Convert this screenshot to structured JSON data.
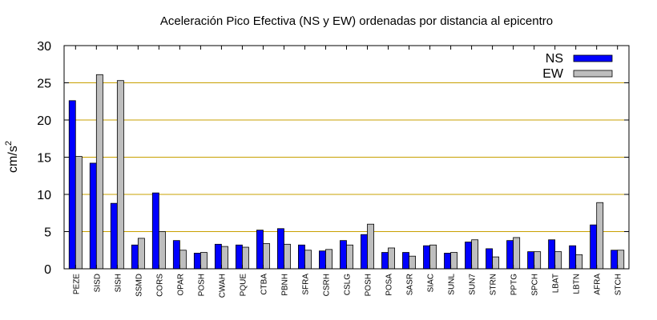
{
  "chart_data": {
    "type": "bar",
    "title": "Aceleración Pico Efectiva (NS y EW) ordenadas por distancia al epicentro",
    "xlabel": "",
    "ylabel": "cm/s",
    "ylabel_sup": "2",
    "ylim": [
      0,
      30
    ],
    "yticks": [
      0,
      5,
      10,
      15,
      20,
      25,
      30
    ],
    "grid": true,
    "legend_position": "top-right",
    "categories": [
      "PEZE",
      "SISD",
      "SISH",
      "SSMD",
      "CORS",
      "OPAR",
      "POSH",
      "CWAH",
      "PQUE",
      "CTBA",
      "PBNH",
      "SFRA",
      "CSRH",
      "CSLG",
      "POSH",
      "POSA",
      "SASR",
      "SIAC",
      "SUNL",
      "SUN7",
      "STRN",
      "PPTG",
      "SPCH",
      "LBAT",
      "LBTN",
      "AFRA",
      "STCH"
    ],
    "series": [
      {
        "name": "NS",
        "color": "#0000ff",
        "values": [
          22.6,
          14.2,
          8.8,
          3.2,
          10.2,
          3.8,
          2.1,
          3.3,
          3.2,
          5.2,
          5.4,
          3.2,
          2.4,
          3.8,
          4.6,
          2.2,
          2.2,
          3.1,
          2.1,
          3.6,
          2.7,
          3.8,
          2.3,
          3.9,
          3.1,
          5.9,
          2.5
        ]
      },
      {
        "name": "EW",
        "color": "#bebebe",
        "values": [
          15.1,
          26.1,
          25.3,
          4.1,
          5.0,
          2.5,
          2.2,
          3.0,
          2.9,
          3.4,
          3.3,
          2.5,
          2.6,
          3.2,
          6.0,
          2.8,
          1.7,
          3.2,
          2.2,
          3.9,
          1.6,
          4.2,
          2.3,
          2.3,
          1.9,
          8.9,
          2.5
        ]
      }
    ],
    "colors": {
      "grid": "#c8a000",
      "axis": "#000000",
      "bar_outline": "#000000"
    }
  }
}
